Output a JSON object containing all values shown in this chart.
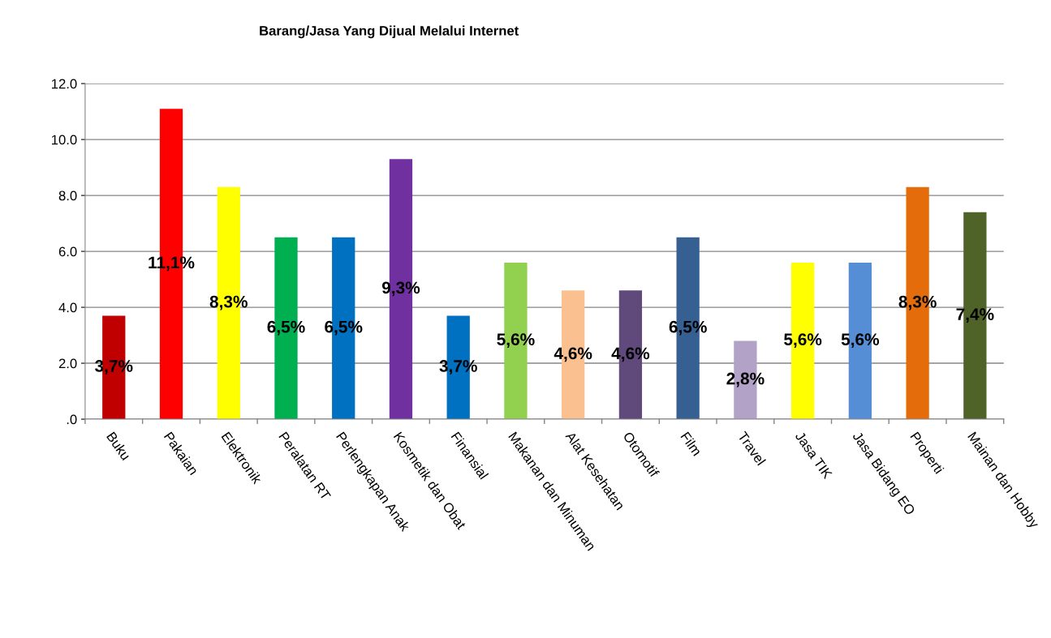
{
  "chart_data": {
    "type": "bar",
    "title": "Barang/Jasa Yang Dijual Melalui Internet",
    "categories": [
      "Buku",
      "Pakaian",
      "Elektronik",
      "Peralatan RT",
      "Perlengkapan Anak",
      "Kosmetik dan Obat",
      "Finansial",
      "Makanan dan Minuman",
      "Alat Kesehatan",
      "Otomotif",
      "Film",
      "Travel",
      "Jasa TIK",
      "Jasa Bidang EO",
      "Properti",
      "Mainan dan Hobby"
    ],
    "values": [
      3.7,
      11.1,
      8.3,
      6.5,
      6.5,
      9.3,
      3.7,
      5.6,
      4.6,
      4.6,
      6.5,
      2.8,
      5.6,
      5.6,
      8.3,
      7.4
    ],
    "colors": [
      "#c00000",
      "#ff0000",
      "#ffff00",
      "#00b050",
      "#0070c0",
      "#7030a0",
      "#0070c0",
      "#92d050",
      "#fac090",
      "#604a7b",
      "#376092",
      "#b3a2c7",
      "#ffff00",
      "#558ed5",
      "#e46c0a",
      "#4f6228"
    ],
    "value_labels": [
      "3,7%",
      "11,1%",
      "8,3%",
      "6,5%",
      "6,5%",
      "9,3%",
      "3,7%",
      "5,6%",
      "4,6%",
      "4,6%",
      "6,5%",
      "2,8%",
      "5,6%",
      "5,6%",
      "8,3%",
      "7,4%"
    ],
    "ylim": [
      0,
      12
    ],
    "yticks": [
      {
        "value": 0,
        "label": ".0"
      },
      {
        "value": 2,
        "label": "2.0"
      },
      {
        "value": 4,
        "label": "4.0"
      },
      {
        "value": 6,
        "label": "6.0"
      },
      {
        "value": 8,
        "label": "8.0"
      },
      {
        "value": 10,
        "label": "10.0"
      },
      {
        "value": 12,
        "label": "12.0"
      }
    ],
    "grid": "y",
    "legend": false
  }
}
